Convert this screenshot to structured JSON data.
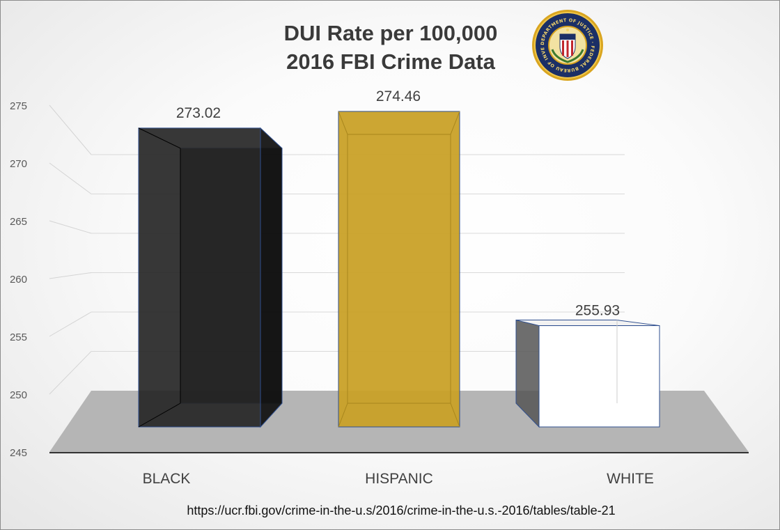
{
  "chart_data": {
    "type": "bar",
    "title_lines": [
      "DUI Rate per 100,000",
      "2016 FBI Crime Data"
    ],
    "categories": [
      "BLACK",
      "HISPANIC",
      "WHITE"
    ],
    "values": [
      273.02,
      274.46,
      255.93
    ],
    "value_labels": [
      "273.02",
      "274.46",
      "255.93"
    ],
    "y_ticks": [
      "245",
      "250",
      "255",
      "260",
      "265",
      "270",
      "275"
    ],
    "ylim": [
      245,
      275
    ],
    "grid": true,
    "legend": "none",
    "style": "3d",
    "colors": [
      "#262626",
      "#c9a128",
      "#ffffff"
    ],
    "edge_color": "#2f4f8f",
    "floor_color": "#b5b5b5"
  },
  "source": "https://ucr.fbi.gov/crime-in-the-u.s/2016/crime-in-the-u.s.-2016/tables/table-21",
  "logo": {
    "icon": "fbi-seal-icon",
    "ring_text": "DEPARTMENT OF JUSTICE · FEDERAL BUREAU OF INVESTIGATION ·"
  }
}
